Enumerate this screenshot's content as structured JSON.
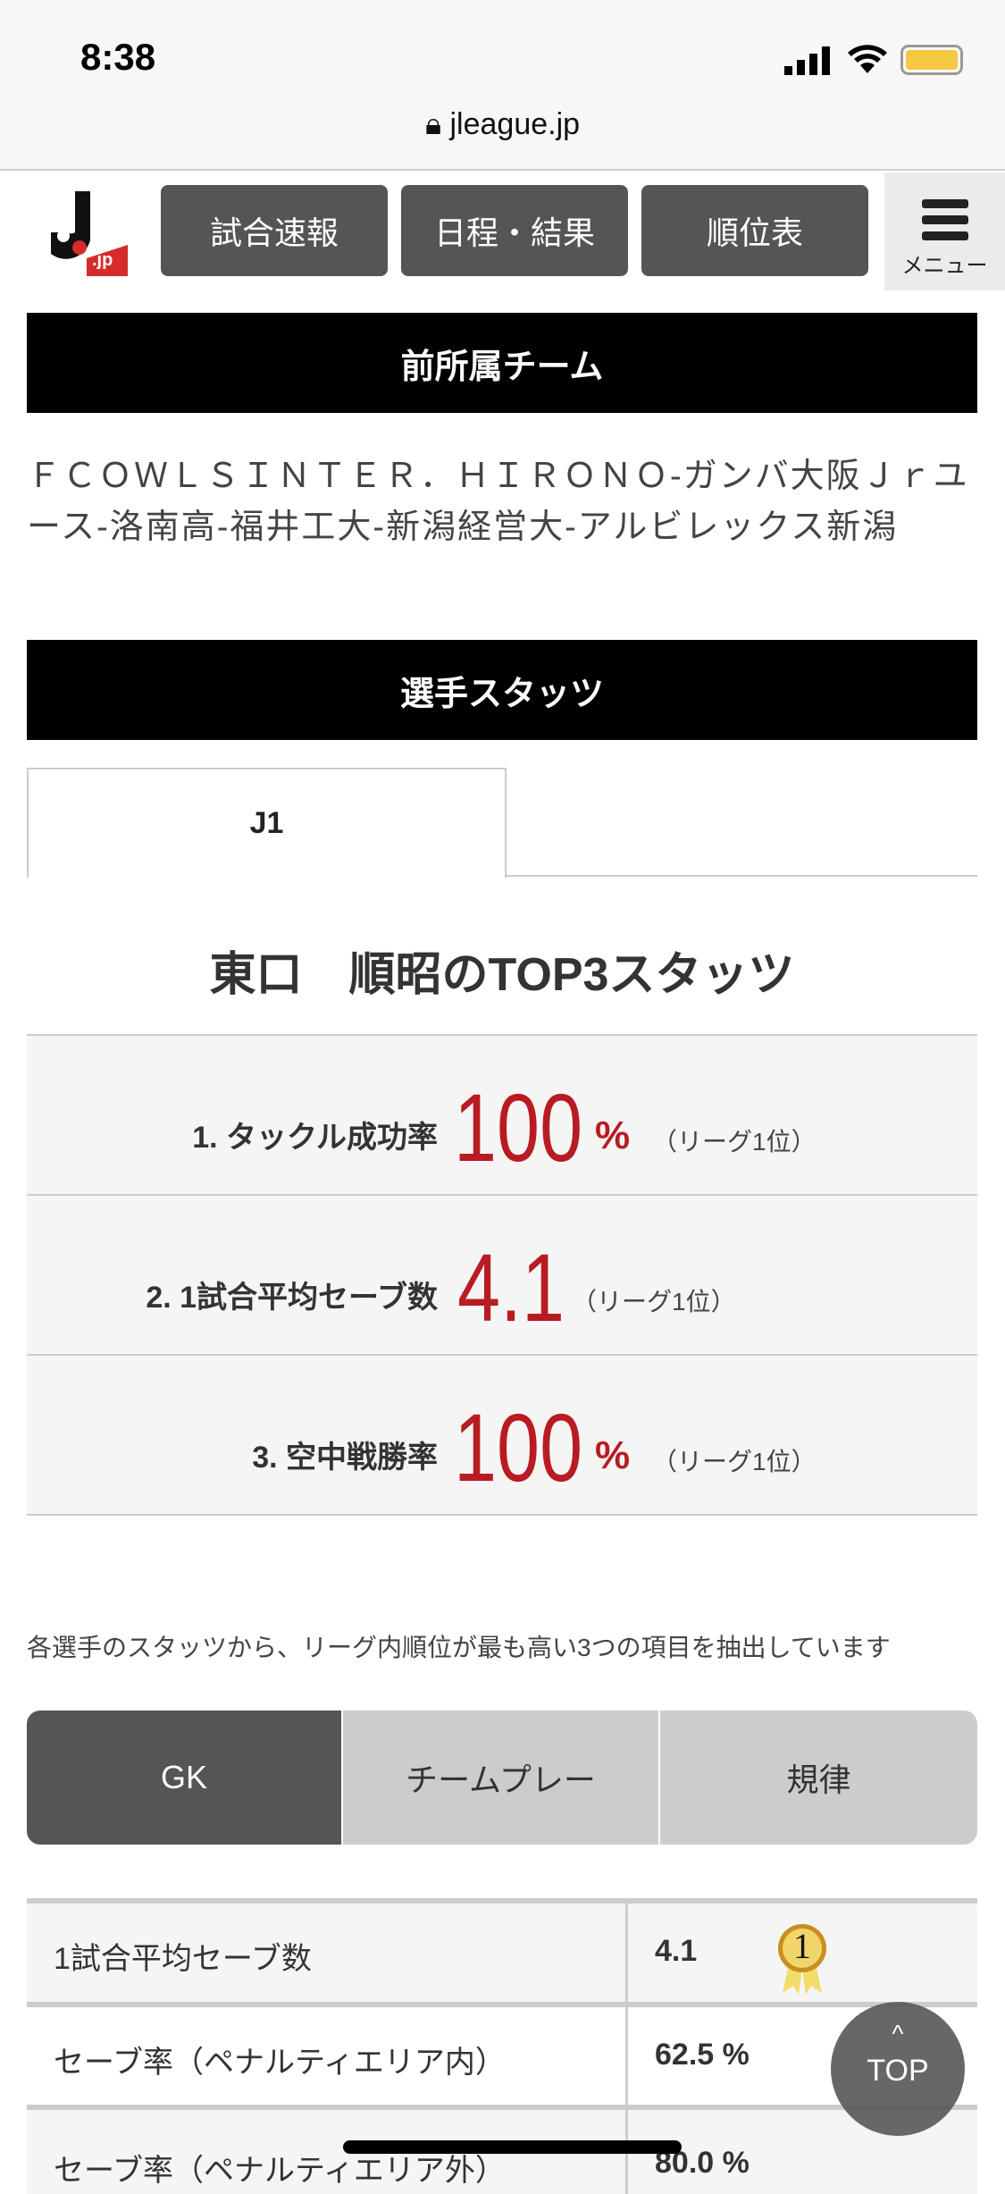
{
  "status_bar": {
    "time": "8:38",
    "url": "jleague.jp"
  },
  "header": {
    "logo_text": ".jp",
    "nav": [
      "試合速報",
      "日程・結果",
      "順位表"
    ],
    "menu_label": "メニュー"
  },
  "previous_teams": {
    "heading": "前所属チーム",
    "text": "ＦＣＯＷＬＳＩＮＴＥＲ．ＨＩＲＯＮＯ-ガンバ大阪Ｊｒユース-洛南高-福井工大-新潟経営大-アルビレックス新潟"
  },
  "player_stats": {
    "heading": "選手スタッツ",
    "tabs": [
      "J1"
    ],
    "top3_title": "東口　順昭のTOP3スタッツ",
    "top3": [
      {
        "label": "1. タックル成功率",
        "value": "100",
        "unit": "%",
        "rank": "（リーグ1位）"
      },
      {
        "label": "2. 1試合平均セーブ数",
        "value": "4.1",
        "unit": "",
        "rank": "（リーグ1位）"
      },
      {
        "label": "3. 空中戦勝率",
        "value": "100",
        "unit": "%",
        "rank": "（リーグ1位）"
      }
    ],
    "note": "各選手のスタッツから、リーグ内順位が最も高い3つの項目を抽出しています",
    "category_tabs": [
      {
        "label": "GK",
        "active": true
      },
      {
        "label": "チームプレー",
        "active": false
      },
      {
        "label": "規律",
        "active": false
      }
    ],
    "table": [
      {
        "label": "1試合平均セーブ数",
        "value": "4.1",
        "medal": "1"
      },
      {
        "label": "セーブ率（ペナルティエリア内）",
        "value": "62.5 %"
      },
      {
        "label": "セーブ率（ペナルティエリア外）",
        "value": "80.0 %"
      }
    ]
  },
  "top_button": {
    "label": "TOP",
    "arrow": "^"
  },
  "colors": {
    "accent_red": "#b81c22",
    "nav_bg": "#555555",
    "active_tab": "#555555",
    "inactive_tab": "#cccccc"
  }
}
